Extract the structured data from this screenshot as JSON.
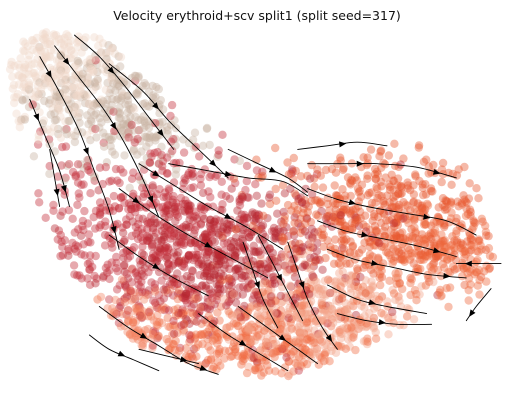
{
  "chart_data": {
    "type": "scatter",
    "title": "Velocity erythroid+scv split1 (split seed=317)",
    "xlabel": "",
    "ylabel": "",
    "axes_visible": false,
    "grid": false,
    "legend": "none",
    "overlay": "velocity streamlines with arrowheads",
    "embedding_region_outline": [
      [
        0.03,
        0.97
      ],
      [
        0.1,
        1.0
      ],
      [
        0.18,
        0.98
      ],
      [
        0.28,
        0.86
      ],
      [
        0.36,
        0.74
      ],
      [
        0.46,
        0.7
      ],
      [
        0.54,
        0.67
      ],
      [
        0.62,
        0.62
      ],
      [
        0.72,
        0.66
      ],
      [
        0.82,
        0.69
      ],
      [
        0.91,
        0.64
      ],
      [
        0.96,
        0.5
      ],
      [
        0.99,
        0.34
      ],
      [
        0.94,
        0.24
      ],
      [
        0.84,
        0.19
      ],
      [
        0.7,
        0.1
      ],
      [
        0.62,
        0.03
      ],
      [
        0.5,
        0.02
      ],
      [
        0.38,
        0.05
      ],
      [
        0.26,
        0.11
      ],
      [
        0.17,
        0.24
      ],
      [
        0.1,
        0.36
      ],
      [
        0.06,
        0.5
      ],
      [
        0.04,
        0.64
      ],
      [
        0.0,
        0.8
      ],
      [
        0.0,
        0.9
      ]
    ],
    "color_regions": [
      {
        "center": [
          0.08,
          0.9
        ],
        "spread": [
          0.07,
          0.08
        ],
        "color": "#f0d9cb",
        "weight": 0.09
      },
      {
        "center": [
          0.22,
          0.78
        ],
        "spread": [
          0.1,
          0.09
        ],
        "color": "#c9b3a3",
        "weight": 0.1
      },
      {
        "center": [
          0.28,
          0.42
        ],
        "spread": [
          0.13,
          0.14
        ],
        "color": "#c4303b",
        "weight": 0.17
      },
      {
        "center": [
          0.44,
          0.36
        ],
        "spread": [
          0.12,
          0.1
        ],
        "color": "#b5262f",
        "weight": 0.14
      },
      {
        "center": [
          0.75,
          0.48
        ],
        "spread": [
          0.12,
          0.1
        ],
        "color": "#e8582f",
        "weight": 0.14
      },
      {
        "center": [
          0.86,
          0.36
        ],
        "spread": [
          0.08,
          0.07
        ],
        "color": "#ef6a3e",
        "weight": 0.07
      },
      {
        "center": [
          0.48,
          0.12
        ],
        "spread": [
          0.16,
          0.07
        ],
        "color": "#f16d45",
        "weight": 0.12
      },
      {
        "center": [
          0.2,
          0.16
        ],
        "spread": [
          0.07,
          0.06
        ],
        "color": "#f3876a",
        "weight": 0.06
      },
      {
        "center": [
          0.62,
          0.2
        ],
        "spread": [
          0.09,
          0.08
        ],
        "color": "#f2a48b",
        "weight": 0.11
      }
    ],
    "streamlines": [
      [
        [
          0.13,
          0.98
        ],
        [
          0.18,
          0.92
        ],
        [
          0.23,
          0.84
        ],
        [
          0.28,
          0.75
        ],
        [
          0.33,
          0.66
        ]
      ],
      [
        [
          0.09,
          0.95
        ],
        [
          0.14,
          0.86
        ],
        [
          0.19,
          0.77
        ],
        [
          0.23,
          0.68
        ],
        [
          0.27,
          0.57
        ],
        [
          0.3,
          0.47
        ]
      ],
      [
        [
          0.06,
          0.92
        ],
        [
          0.1,
          0.82
        ],
        [
          0.14,
          0.71
        ],
        [
          0.17,
          0.6
        ],
        [
          0.2,
          0.49
        ],
        [
          0.22,
          0.38
        ]
      ],
      [
        [
          0.04,
          0.8
        ],
        [
          0.07,
          0.7
        ],
        [
          0.1,
          0.6
        ],
        [
          0.12,
          0.5
        ]
      ],
      [
        [
          0.08,
          0.66
        ],
        [
          0.09,
          0.58
        ],
        [
          0.1,
          0.5
        ]
      ],
      [
        [
          0.2,
          0.9
        ],
        [
          0.27,
          0.82
        ],
        [
          0.32,
          0.74
        ],
        [
          0.38,
          0.66
        ],
        [
          0.44,
          0.58
        ]
      ],
      [
        [
          0.26,
          0.62
        ],
        [
          0.33,
          0.56
        ],
        [
          0.4,
          0.5
        ],
        [
          0.48,
          0.44
        ],
        [
          0.55,
          0.38
        ]
      ],
      [
        [
          0.22,
          0.55
        ],
        [
          0.29,
          0.48
        ],
        [
          0.36,
          0.42
        ],
        [
          0.44,
          0.36
        ],
        [
          0.52,
          0.3
        ]
      ],
      [
        [
          0.2,
          0.42
        ],
        [
          0.26,
          0.36
        ],
        [
          0.33,
          0.3
        ],
        [
          0.4,
          0.25
        ]
      ],
      [
        [
          0.32,
          0.62
        ],
        [
          0.4,
          0.6
        ],
        [
          0.48,
          0.58
        ],
        [
          0.55,
          0.57
        ],
        [
          0.6,
          0.53
        ]
      ],
      [
        [
          0.44,
          0.66
        ],
        [
          0.5,
          0.62
        ],
        [
          0.56,
          0.58
        ],
        [
          0.6,
          0.54
        ]
      ],
      [
        [
          0.58,
          0.66
        ],
        [
          0.64,
          0.67
        ],
        [
          0.7,
          0.68
        ],
        [
          0.76,
          0.67
        ]
      ],
      [
        [
          0.6,
          0.62
        ],
        [
          0.67,
          0.62
        ],
        [
          0.74,
          0.62
        ],
        [
          0.82,
          0.61
        ],
        [
          0.9,
          0.58
        ]
      ],
      [
        [
          0.6,
          0.55
        ],
        [
          0.66,
          0.52
        ],
        [
          0.72,
          0.5
        ],
        [
          0.8,
          0.48
        ],
        [
          0.88,
          0.46
        ],
        [
          0.94,
          0.42
        ]
      ],
      [
        [
          0.62,
          0.46
        ],
        [
          0.68,
          0.43
        ],
        [
          0.75,
          0.41
        ],
        [
          0.82,
          0.39
        ],
        [
          0.9,
          0.36
        ]
      ],
      [
        [
          0.64,
          0.38
        ],
        [
          0.7,
          0.35
        ],
        [
          0.77,
          0.33
        ],
        [
          0.84,
          0.31
        ],
        [
          0.92,
          0.3
        ]
      ],
      [
        [
          0.99,
          0.34
        ],
        [
          0.95,
          0.34
        ],
        [
          0.9,
          0.34
        ]
      ],
      [
        [
          0.97,
          0.27
        ],
        [
          0.94,
          0.22
        ],
        [
          0.92,
          0.18
        ]
      ],
      [
        [
          0.56,
          0.4
        ],
        [
          0.58,
          0.32
        ],
        [
          0.6,
          0.24
        ],
        [
          0.63,
          0.16
        ],
        [
          0.66,
          0.1
        ]
      ],
      [
        [
          0.5,
          0.42
        ],
        [
          0.53,
          0.34
        ],
        [
          0.56,
          0.26
        ],
        [
          0.59,
          0.18
        ]
      ],
      [
        [
          0.64,
          0.28
        ],
        [
          0.7,
          0.24
        ],
        [
          0.76,
          0.22
        ],
        [
          0.84,
          0.2
        ]
      ],
      [
        [
          0.66,
          0.2
        ],
        [
          0.72,
          0.18
        ],
        [
          0.78,
          0.17
        ],
        [
          0.85,
          0.17
        ]
      ],
      [
        [
          0.46,
          0.22
        ],
        [
          0.52,
          0.16
        ],
        [
          0.58,
          0.1
        ],
        [
          0.62,
          0.06
        ]
      ],
      [
        [
          0.38,
          0.2
        ],
        [
          0.44,
          0.14
        ],
        [
          0.5,
          0.09
        ],
        [
          0.56,
          0.04
        ]
      ],
      [
        [
          0.18,
          0.22
        ],
        [
          0.24,
          0.16
        ],
        [
          0.3,
          0.11
        ],
        [
          0.36,
          0.06
        ],
        [
          0.42,
          0.03
        ]
      ],
      [
        [
          0.16,
          0.14
        ],
        [
          0.2,
          0.1
        ],
        [
          0.25,
          0.07
        ],
        [
          0.3,
          0.04
        ]
      ],
      [
        [
          0.26,
          0.1
        ],
        [
          0.32,
          0.08
        ],
        [
          0.38,
          0.06
        ]
      ],
      [
        [
          0.47,
          0.4
        ],
        [
          0.49,
          0.32
        ],
        [
          0.51,
          0.24
        ],
        [
          0.54,
          0.16
        ]
      ]
    ],
    "arrow_positions": [
      [
        0,
        2
      ],
      [
        0,
        4
      ],
      [
        1,
        1
      ],
      [
        1,
        3
      ],
      [
        1,
        5
      ],
      [
        2,
        1
      ],
      [
        2,
        3
      ],
      [
        2,
        5
      ],
      [
        3,
        1
      ],
      [
        3,
        3
      ],
      [
        4,
        2
      ],
      [
        5,
        2
      ],
      [
        5,
        4
      ],
      [
        6,
        1
      ],
      [
        6,
        3
      ],
      [
        7,
        1
      ],
      [
        7,
        3
      ],
      [
        8,
        2
      ],
      [
        9,
        2
      ],
      [
        10,
        2
      ],
      [
        11,
        2
      ],
      [
        12,
        2
      ],
      [
        12,
        4
      ],
      [
        13,
        2
      ],
      [
        13,
        4
      ],
      [
        14,
        2
      ],
      [
        14,
        4
      ],
      [
        15,
        2
      ],
      [
        15,
        4
      ],
      [
        16,
        2
      ],
      [
        17,
        2
      ],
      [
        18,
        2
      ],
      [
        18,
        4
      ],
      [
        19,
        2
      ],
      [
        20,
        2
      ],
      [
        21,
        2
      ],
      [
        22,
        2
      ],
      [
        23,
        2
      ],
      [
        24,
        2
      ],
      [
        24,
        4
      ],
      [
        25,
        2
      ],
      [
        26,
        2
      ],
      [
        27,
        2
      ]
    ],
    "point_count": 3200,
    "colors": {
      "streamline": "#000000",
      "background": "#ffffff",
      "title": "#111111"
    }
  }
}
